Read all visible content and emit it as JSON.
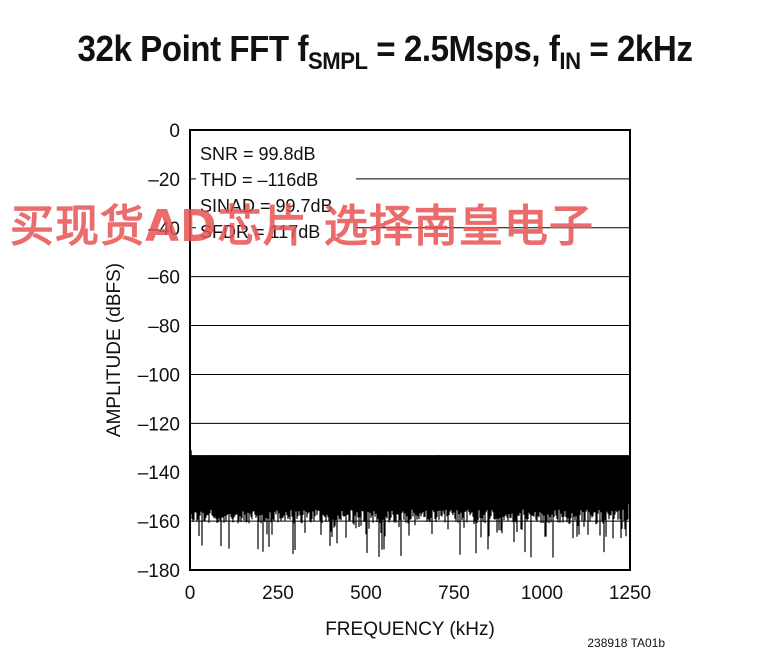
{
  "chart_data": {
    "type": "line",
    "title": {
      "prefix": "32k Point FFT f",
      "sub1": "SMPL",
      "middle": " = 2.5Msps, f",
      "sub2": "IN",
      "suffix": " = 2kHz"
    },
    "xlabel": "FREQUENCY (kHz)",
    "ylabel": "AMPLITUDE (dBFS)",
    "xlim": [
      0,
      1250
    ],
    "ylim": [
      -180,
      0
    ],
    "x_ticks": [
      0,
      250,
      500,
      750,
      1000,
      1250
    ],
    "y_ticks": [
      0,
      -20,
      -40,
      -60,
      -80,
      -100,
      -120,
      -140,
      -160,
      -180
    ],
    "x_tick_labels": [
      "0",
      "250",
      "500",
      "750",
      "1000",
      "1250"
    ],
    "y_tick_labels": [
      "0",
      "–20",
      "–40",
      "–60",
      "–80",
      "–100",
      "–120",
      "–140",
      "–160",
      "–180"
    ],
    "grid": "horizontal",
    "stats": [
      "SNR = 99.8dB",
      "THD = –116dB",
      "SINAD = 99.7dB",
      "SFDR = 117dB"
    ],
    "series": [
      {
        "noise_floor_upper_db": -135,
        "noise_floor_lower_db": -157,
        "noise_floor_center_db": -146,
        "fundamental_khz": 2,
        "fundamental_db": -131,
        "min_dip_db": -180
      }
    ],
    "figure_code": "238918 TA01b"
  },
  "watermark": "买现货AD芯片 选择南皇电子",
  "colors": {
    "trace": "#000000",
    "grid": "#000000",
    "watermark": "#e85252"
  }
}
